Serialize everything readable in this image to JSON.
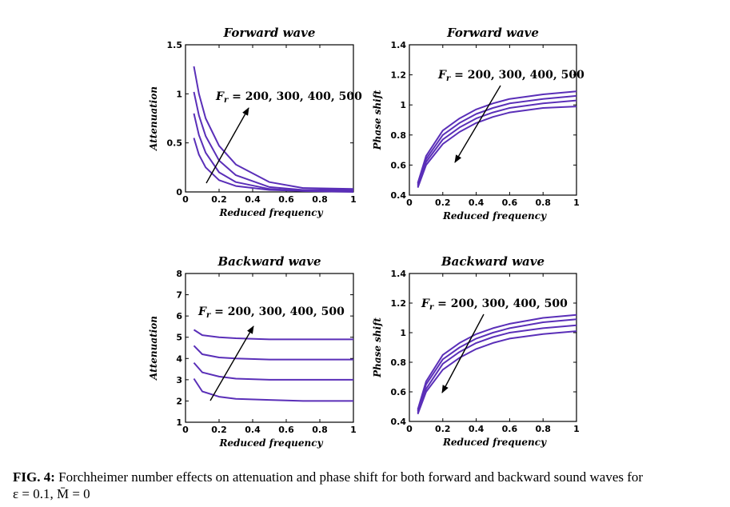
{
  "chart_data": [
    {
      "type": "line",
      "title": "Forward wave",
      "xlabel": "Reduced frequency",
      "ylabel": "Attenuation",
      "xlim": [
        0,
        1
      ],
      "ylim": [
        0,
        1.5
      ],
      "xticks": [
        "0",
        "0.2",
        "0.4",
        "0.6",
        "0.8",
        "1"
      ],
      "yticks": [
        "0",
        "0.5",
        "1",
        "1.5"
      ],
      "annotation": "F_r = 200, 300, 400, 500",
      "series": [
        {
          "x": [
            0.05,
            0.08,
            0.12,
            0.2,
            0.3,
            0.5,
            0.7,
            1.0
          ],
          "y": [
            0.55,
            0.38,
            0.25,
            0.12,
            0.06,
            0.02,
            0.01,
            0.0
          ]
        },
        {
          "x": [
            0.05,
            0.08,
            0.12,
            0.2,
            0.3,
            0.5,
            0.7,
            1.0
          ],
          "y": [
            0.8,
            0.58,
            0.4,
            0.2,
            0.1,
            0.03,
            0.01,
            0.01
          ]
        },
        {
          "x": [
            0.05,
            0.08,
            0.12,
            0.2,
            0.3,
            0.5,
            0.7,
            1.0
          ],
          "y": [
            1.02,
            0.78,
            0.57,
            0.32,
            0.17,
            0.05,
            0.02,
            0.02
          ]
        },
        {
          "x": [
            0.05,
            0.08,
            0.12,
            0.2,
            0.3,
            0.5,
            0.7,
            1.0
          ],
          "y": [
            1.28,
            1.0,
            0.75,
            0.47,
            0.28,
            0.1,
            0.04,
            0.03
          ]
        }
      ]
    },
    {
      "type": "line",
      "title": "Forward wave",
      "xlabel": "Reduced frequency",
      "ylabel": "Phase shift",
      "xlim": [
        0,
        1
      ],
      "ylim": [
        0.4,
        1.4
      ],
      "xticks": [
        "0",
        "0.2",
        "0.4",
        "0.6",
        "0.8",
        "1"
      ],
      "yticks": [
        "0.4",
        "0.6",
        "0.8",
        "1",
        "1.2",
        "1.4"
      ],
      "annotation": "F_r = 200, 300, 400, 500",
      "series": [
        {
          "x": [
            0.05,
            0.1,
            0.2,
            0.3,
            0.4,
            0.5,
            0.6,
            0.8,
            1.0
          ],
          "y": [
            0.48,
            0.66,
            0.83,
            0.91,
            0.97,
            1.01,
            1.04,
            1.07,
            1.09
          ]
        },
        {
          "x": [
            0.05,
            0.1,
            0.2,
            0.3,
            0.4,
            0.5,
            0.6,
            0.8,
            1.0
          ],
          "y": [
            0.47,
            0.64,
            0.8,
            0.88,
            0.94,
            0.98,
            1.01,
            1.04,
            1.06
          ]
        },
        {
          "x": [
            0.05,
            0.1,
            0.2,
            0.3,
            0.4,
            0.5,
            0.6,
            0.8,
            1.0
          ],
          "y": [
            0.46,
            0.62,
            0.77,
            0.85,
            0.91,
            0.95,
            0.98,
            1.01,
            1.03
          ]
        },
        {
          "x": [
            0.05,
            0.1,
            0.2,
            0.3,
            0.4,
            0.5,
            0.6,
            0.8,
            1.0
          ],
          "y": [
            0.45,
            0.6,
            0.74,
            0.82,
            0.88,
            0.92,
            0.95,
            0.98,
            0.99
          ]
        }
      ]
    },
    {
      "type": "line",
      "title": "Backward wave",
      "xlabel": "Reduced frequency",
      "ylabel": "Attenuation",
      "xlim": [
        0,
        1
      ],
      "ylim": [
        1,
        8
      ],
      "xticks": [
        "0",
        "0.2",
        "0.4",
        "0.6",
        "0.8",
        "1"
      ],
      "yticks": [
        "1",
        "2",
        "3",
        "4",
        "5",
        "6",
        "7",
        "8"
      ],
      "annotation": "F_r = 200, 300, 400, 500",
      "series": [
        {
          "x": [
            0.05,
            0.1,
            0.2,
            0.3,
            0.5,
            0.7,
            1.0
          ],
          "y": [
            3.05,
            2.45,
            2.2,
            2.1,
            2.05,
            2.0,
            2.0
          ]
        },
        {
          "x": [
            0.05,
            0.1,
            0.2,
            0.3,
            0.5,
            0.7,
            1.0
          ],
          "y": [
            3.8,
            3.35,
            3.15,
            3.05,
            3.0,
            3.0,
            3.0
          ]
        },
        {
          "x": [
            0.05,
            0.1,
            0.2,
            0.3,
            0.5,
            0.7,
            1.0
          ],
          "y": [
            4.6,
            4.2,
            4.05,
            4.0,
            3.95,
            3.95,
            3.95
          ]
        },
        {
          "x": [
            0.05,
            0.1,
            0.2,
            0.3,
            0.5,
            0.7,
            1.0
          ],
          "y": [
            5.35,
            5.1,
            5.0,
            4.95,
            4.9,
            4.9,
            4.9
          ]
        }
      ]
    },
    {
      "type": "line",
      "title": "Backward wave",
      "xlabel": "Reduced frequency",
      "ylabel": "Phase shift",
      "xlim": [
        0,
        1
      ],
      "ylim": [
        0.4,
        1.4
      ],
      "xticks": [
        "0",
        "0.2",
        "0.4",
        "0.6",
        "0.8",
        "1"
      ],
      "yticks": [
        "0.4",
        "0.6",
        "0.8",
        "1",
        "1.2",
        "1.4"
      ],
      "annotation": "F_r = 200, 300, 400, 500",
      "series": [
        {
          "x": [
            0.05,
            0.1,
            0.2,
            0.3,
            0.4,
            0.5,
            0.6,
            0.8,
            1.0
          ],
          "y": [
            0.48,
            0.67,
            0.85,
            0.93,
            0.99,
            1.03,
            1.06,
            1.1,
            1.12
          ]
        },
        {
          "x": [
            0.05,
            0.1,
            0.2,
            0.3,
            0.4,
            0.5,
            0.6,
            0.8,
            1.0
          ],
          "y": [
            0.47,
            0.65,
            0.82,
            0.9,
            0.96,
            1.0,
            1.03,
            1.07,
            1.09
          ]
        },
        {
          "x": [
            0.05,
            0.1,
            0.2,
            0.3,
            0.4,
            0.5,
            0.6,
            0.8,
            1.0
          ],
          "y": [
            0.46,
            0.62,
            0.79,
            0.87,
            0.93,
            0.97,
            1.0,
            1.03,
            1.05
          ]
        },
        {
          "x": [
            0.05,
            0.1,
            0.2,
            0.3,
            0.4,
            0.5,
            0.6,
            0.8,
            1.0
          ],
          "y": [
            0.45,
            0.6,
            0.75,
            0.83,
            0.89,
            0.93,
            0.96,
            0.99,
            1.01
          ]
        }
      ]
    }
  ],
  "style": {
    "line_color": "#5a2fb8",
    "arrow_color": "#000000"
  },
  "caption": {
    "label": "FIG. 4",
    "text": "Forchheimer number effects on attenuation and phase shift for both forward and backward sound waves for",
    "line2": "ε = 0.1, M̄ = 0"
  }
}
